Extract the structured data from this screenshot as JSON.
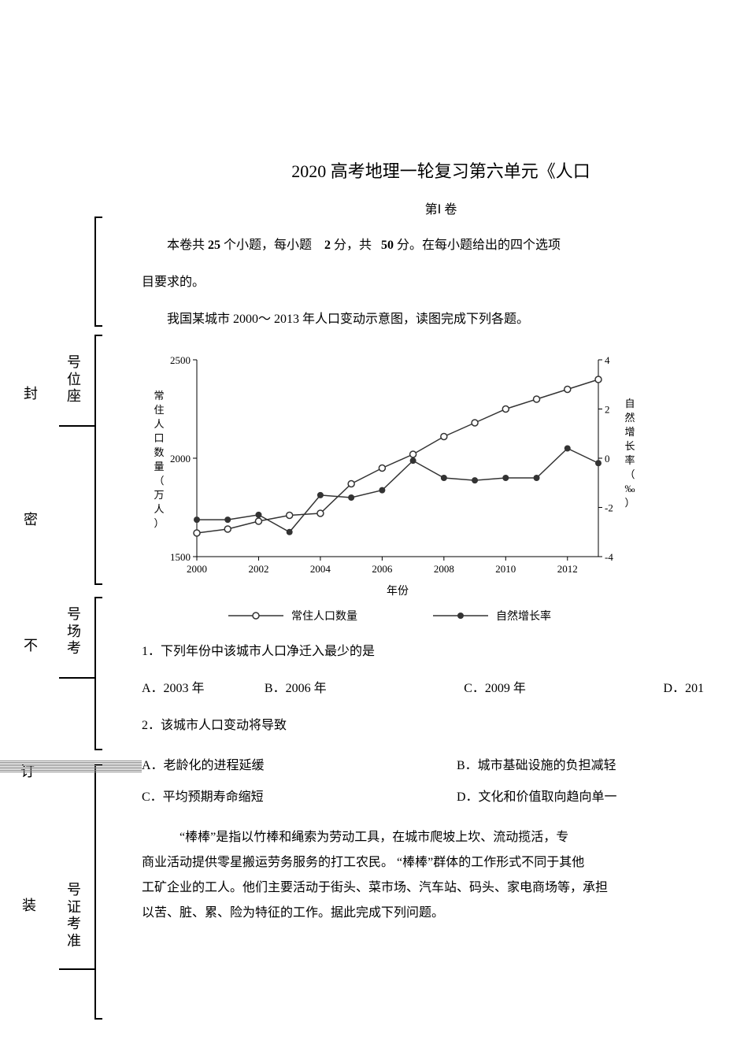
{
  "title": "2020 高考地理一轮复习第六单元《人口",
  "section_label": "第Ⅰ  卷",
  "intro_line1_prefix": "本卷共",
  "intro_q_count": "25",
  "intro_mid1": "个小题，每小题",
  "intro_points_each": "2",
  "intro_mid2": "分，共",
  "intro_points_total": "50",
  "intro_suffix": "分。在每小题给出的四个选项",
  "intro_line2": "目要求的。",
  "passage1": "我国某城市   2000～ 2013 年人口变动示意图，读图完成下列各题。",
  "chart": {
    "type": "line",
    "years": [
      2000,
      2001,
      2002,
      2003,
      2004,
      2005,
      2006,
      2007,
      2008,
      2009,
      2010,
      2011,
      2012,
      2013
    ],
    "xlabel": "年份",
    "y1_label": "常住人口数量（万人）",
    "y1_values": [
      1620,
      1640,
      1680,
      1710,
      1720,
      1870,
      1950,
      2020,
      2110,
      2180,
      2250,
      2300,
      2350,
      2400
    ],
    "y1_lim": [
      1500,
      2500
    ],
    "y1_ticks": [
      1500,
      2000,
      2500
    ],
    "y2_label": "自然增长率（‰）",
    "y2_values": [
      -2.5,
      -2.5,
      -2.3,
      -3.0,
      -1.5,
      -1.6,
      -1.3,
      -0.1,
      -0.8,
      -0.9,
      -0.8,
      -0.8,
      0.4,
      -0.2
    ],
    "y2_lim": [
      -4,
      4
    ],
    "y2_ticks": [
      -4,
      -2,
      0,
      2,
      4
    ],
    "x_ticks": [
      2000,
      2002,
      2004,
      2006,
      2008,
      2010,
      2012
    ],
    "series1_name": "常住人口数量",
    "series1_color": "#333333",
    "series1_marker": "open-circle",
    "series2_name": "自然增长率",
    "series2_color": "#333333",
    "series2_marker": "filled-circle",
    "background_color": "#ffffff",
    "grid": false,
    "axis_color": "#000000",
    "tick_fontsize": 13,
    "label_fontsize": 13,
    "legend_fontsize": 14,
    "line_width": 1.5,
    "marker_size": 4
  },
  "q1": {
    "number": "1．",
    "text": "下列年份中该城市人口净迁入最少的是",
    "a": "A．2003 年",
    "b": "B．2006 年",
    "c": "C．2009 年",
    "d": "D．201"
  },
  "q2": {
    "number": "2．",
    "text": "该城市人口变动将导致",
    "a": "A．老龄化的进程延缓",
    "b": "B．城市基础设施的负担减轻",
    "c": "C．平均预期寿命缩短",
    "d": "D．文化和价值取向趋向单一"
  },
  "passage2_l1": "“棒棒”是指以竹棒和绳索为劳动工具，在城市爬坡上坎、流动揽活，专",
  "passage2_l2": "商业活动提供零星搬运劳务服务的打工农民。     “棒棒”群体的工作形式不同于其他",
  "passage2_l3": "工矿企业的工人。他们主要活动于街头、菜市场、汽车站、码头、家电商场等，承担",
  "passage2_l4": "以苦、脏、累、险为特征的工作。据此完成下列问题。",
  "margin": {
    "zuowei": "号位座",
    "feng": "封",
    "mi": "密",
    "kaochang": "号场考",
    "bu": "不",
    "ding": "订",
    "zhuang": "装",
    "zhunkaozheng": "号证考准"
  }
}
